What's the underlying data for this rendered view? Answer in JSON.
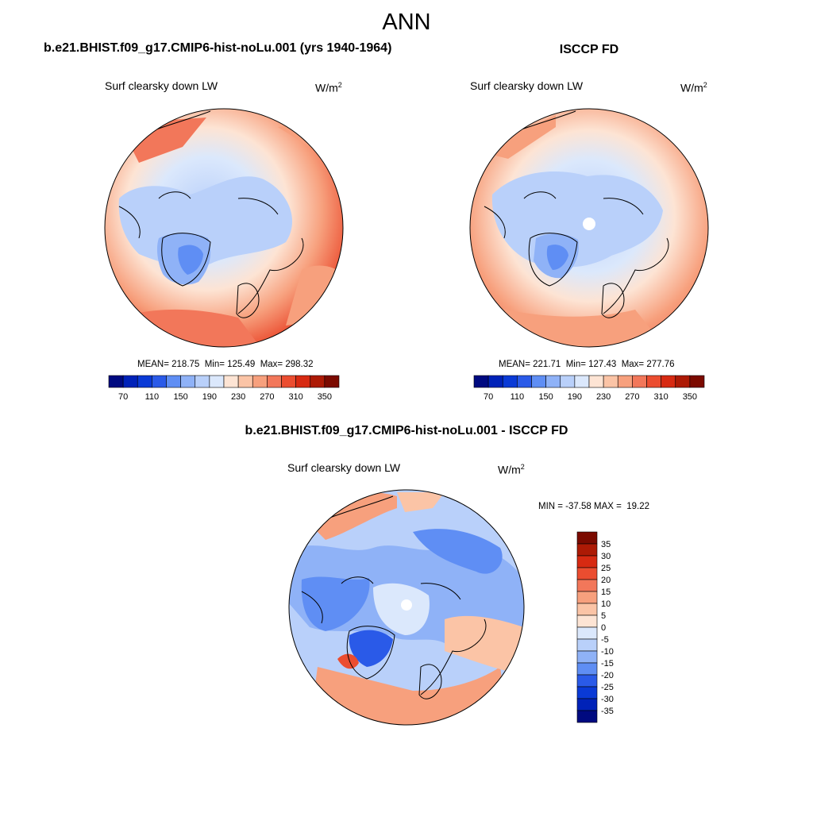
{
  "figure_title": "ANN",
  "colors": {
    "abs_scale": [
      "#000a80",
      "#0022b8",
      "#0a3ad6",
      "#2a5ae8",
      "#5f8ef4",
      "#8fb2f7",
      "#b9d0fa",
      "#dbe8fc",
      "#fde4d4",
      "#fbc4a6",
      "#f7a07d",
      "#f2775a",
      "#eb4d30",
      "#d72a12",
      "#ad1a05",
      "#7b0a00"
    ],
    "diff_scale": [
      "#000a80",
      "#0022b8",
      "#0a3ad6",
      "#2a5ae8",
      "#5f8ef4",
      "#8fb2f7",
      "#b9d0fa",
      "#dbe8fc",
      "#fde4d4",
      "#fbc4a6",
      "#f7a07d",
      "#f2775a",
      "#eb4d30",
      "#d72a12",
      "#ad1a05",
      "#7b0a00"
    ]
  },
  "panels": {
    "model": {
      "title": "b.e21.BHIST.f09_g17.CMIP6-hist-noLu.001 (yrs 1940-1964)",
      "variable": "Surf clearsky down LW",
      "units_base": "W/m",
      "units_exp": "2",
      "stats": "MEAN= 218.75  Min= 125.49  Max= 298.32",
      "colorbar_labels": [
        "70",
        "110",
        "150",
        "190",
        "230",
        "270",
        "310",
        "350"
      ]
    },
    "obs": {
      "title": "ISCCP FD",
      "variable": "Surf clearsky down LW",
      "units_base": "W/m",
      "units_exp": "2",
      "stats": "MEAN= 221.71  Min= 127.43  Max= 277.76",
      "colorbar_labels": [
        "70",
        "110",
        "150",
        "190",
        "230",
        "270",
        "310",
        "350"
      ]
    },
    "diff": {
      "title": "b.e21.BHIST.f09_g17.CMIP6-hist-noLu.001 - ISCCP FD",
      "variable": "Surf clearsky down LW",
      "units_base": "W/m",
      "units_exp": "2",
      "stats": "MIN = -37.58 MAX =  19.22",
      "colorbar_labels": [
        "35",
        "30",
        "25",
        "20",
        "15",
        "10",
        "5",
        "0",
        "-5",
        "-10",
        "-15",
        "-20",
        "-25",
        "-30",
        "-35"
      ]
    }
  }
}
